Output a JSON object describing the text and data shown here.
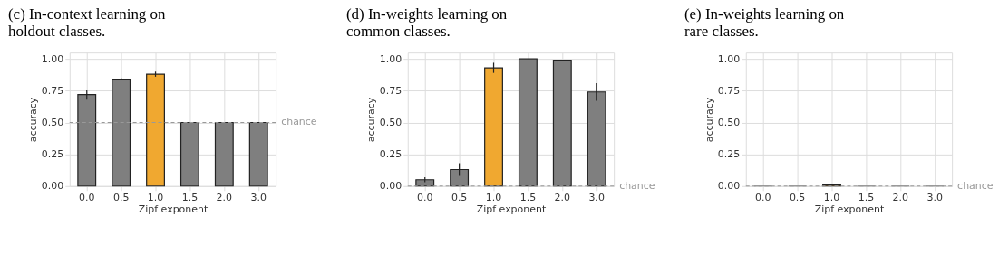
{
  "chart_data": [
    {
      "type": "bar",
      "title": "(c) In-context learning on holdout classes.",
      "xlabel": "Zipf exponent",
      "ylabel": "accuracy",
      "categories": [
        "0.0",
        "0.5",
        "1.0",
        "1.5",
        "2.0",
        "3.0"
      ],
      "values": [
        0.72,
        0.84,
        0.88,
        0.5,
        0.5,
        0.5
      ],
      "errors": [
        0.04,
        0.01,
        0.02,
        null,
        null,
        null
      ],
      "colors": [
        "#7f7f7f",
        "#7f7f7f",
        "#f0a830",
        "#7f7f7f",
        "#7f7f7f",
        "#7f7f7f"
      ],
      "ylim": [
        0,
        1.05
      ],
      "yticks": [
        {
          "value": 0,
          "label": "0.00"
        },
        {
          "value": 0.25,
          "label": "0.25"
        },
        {
          "value": 0.5,
          "label": "0.50"
        },
        {
          "value": 0.75,
          "label": "0.75"
        },
        {
          "value": 1,
          "label": "1.00"
        }
      ],
      "grid": true,
      "ref_lines": [
        {
          "axis": "y",
          "value": 0.5,
          "label": "chance",
          "color": "#999999",
          "line_style": "dashed"
        }
      ]
    },
    {
      "type": "bar",
      "title": "(d) In-weights learning on common classes.",
      "xlabel": "Zipf exponent",
      "ylabel": "accuracy",
      "categories": [
        "0.0",
        "0.5",
        "1.0",
        "1.5",
        "2.0",
        "3.0"
      ],
      "values": [
        0.05,
        0.13,
        0.93,
        1.0,
        0.99,
        0.74
      ],
      "errors": [
        0.02,
        0.05,
        0.04,
        null,
        null,
        0.07
      ],
      "colors": [
        "#7f7f7f",
        "#7f7f7f",
        "#f0a830",
        "#7f7f7f",
        "#7f7f7f",
        "#7f7f7f"
      ],
      "ylim": [
        0,
        1.05
      ],
      "yticks": [
        {
          "value": 0,
          "label": "0.00"
        },
        {
          "value": 0.25,
          "label": "0.25"
        },
        {
          "value": 0.5,
          "label": "0.50"
        },
        {
          "value": 0.75,
          "label": "0.75"
        },
        {
          "value": 1,
          "label": "1.00"
        }
      ],
      "grid": true,
      "ref_lines": [
        {
          "axis": "y",
          "value": 0,
          "label": "chance",
          "color": "#999999",
          "line_style": "dashed"
        }
      ]
    },
    {
      "type": "bar",
      "title": "(e) In-weights learning on rare classes.",
      "xlabel": "Zipf exponent",
      "ylabel": "accuracy",
      "categories": [
        "0.0",
        "0.5",
        "1.0",
        "1.5",
        "2.0",
        "3.0"
      ],
      "values": [
        0,
        0,
        0.01,
        0,
        0,
        0
      ],
      "colors": [
        "#7f7f7f",
        "#7f7f7f",
        "#f0a830",
        "#7f7f7f",
        "#7f7f7f",
        "#7f7f7f"
      ],
      "ylim": [
        0,
        1.05
      ],
      "yticks": [
        {
          "value": 0,
          "label": "0.00"
        },
        {
          "value": 0.25,
          "label": "0.25"
        },
        {
          "value": 0.5,
          "label": "0.50"
        },
        {
          "value": 0.75,
          "label": "0.75"
        },
        {
          "value": 1,
          "label": "1.00"
        }
      ],
      "grid": true,
      "ref_lines": [
        {
          "axis": "y",
          "value": 0,
          "label": "chance",
          "color": "#999999",
          "line_style": "dashed"
        }
      ]
    }
  ]
}
